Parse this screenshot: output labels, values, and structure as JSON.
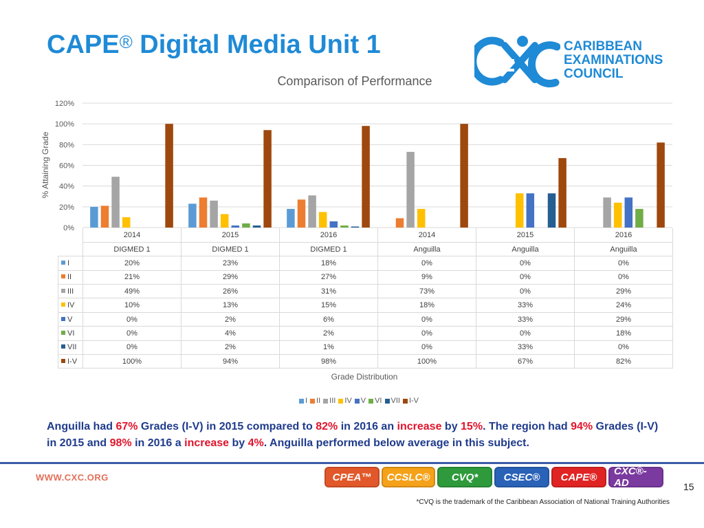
{
  "slide": {
    "title": "CAPE",
    "title_mark": "®",
    "title_rest": " Digital Media Unit 1"
  },
  "logo": {
    "name_lines": [
      "CARIBBEAN",
      "EXAMINATIONS",
      "COUNCIL"
    ],
    "mark_text": "CXC",
    "color": "#1f8ad6"
  },
  "chart_data": {
    "type": "bar",
    "title": "Comparison of Performance",
    "ylabel": "% Attaining Grade",
    "xlabel": "Grade Distribution",
    "ylim": [
      0,
      120
    ],
    "yticks": [
      "0%",
      "20%",
      "40%",
      "60%",
      "80%",
      "100%",
      "120%"
    ],
    "grid": true,
    "legend_position": "bottom",
    "categories": [
      {
        "year": "2014",
        "group": "DIGMED 1"
      },
      {
        "year": "2015",
        "group": "DIGMED 1"
      },
      {
        "year": "2016",
        "group": "DIGMED 1"
      },
      {
        "year": "2014",
        "group": "Anguilla"
      },
      {
        "year": "2015",
        "group": "Anguilla"
      },
      {
        "year": "2016",
        "group": "Anguilla"
      }
    ],
    "series": [
      {
        "name": "I",
        "color": "#5b9bd5",
        "values": [
          20,
          23,
          18,
          0,
          0,
          0
        ],
        "labels": [
          "20%",
          "23%",
          "18%",
          "0%",
          "0%",
          "0%"
        ]
      },
      {
        "name": "II",
        "color": "#ed7d31",
        "values": [
          21,
          29,
          27,
          9,
          0,
          0
        ],
        "labels": [
          "21%",
          "29%",
          "27%",
          "9%",
          "0%",
          "0%"
        ]
      },
      {
        "name": "III",
        "color": "#a5a5a5",
        "values": [
          49,
          26,
          31,
          73,
          0,
          29
        ],
        "labels": [
          "49%",
          "26%",
          "31%",
          "73%",
          "0%",
          "29%"
        ]
      },
      {
        "name": "IV",
        "color": "#ffc000",
        "values": [
          10,
          13,
          15,
          18,
          33,
          24
        ],
        "labels": [
          "10%",
          "13%",
          "15%",
          "18%",
          "33%",
          "24%"
        ]
      },
      {
        "name": "V",
        "color": "#4472c4",
        "values": [
          0,
          2,
          6,
          0,
          33,
          29
        ],
        "labels": [
          "0%",
          "2%",
          "6%",
          "0%",
          "33%",
          "29%"
        ]
      },
      {
        "name": "VI",
        "color": "#70ad47",
        "values": [
          0,
          4,
          2,
          0,
          0,
          18
        ],
        "labels": [
          "0%",
          "4%",
          "2%",
          "0%",
          "0%",
          "18%"
        ]
      },
      {
        "name": "VII",
        "color": "#255e91",
        "values": [
          0,
          2,
          1,
          0,
          33,
          0
        ],
        "labels": [
          "0%",
          "2%",
          "1%",
          "0%",
          "33%",
          "0%"
        ]
      },
      {
        "name": "I-V",
        "color": "#9e480e",
        "values": [
          100,
          94,
          98,
          100,
          67,
          82
        ],
        "labels": [
          "100%",
          "94%",
          "98%",
          "100%",
          "67%",
          "82%"
        ]
      }
    ]
  },
  "caption": {
    "p1": "Anguilla had ",
    "v1": "67%",
    "p2": " Grades (I-V) in 2015 compared to ",
    "v2": "82%",
    "p3": " in 2016 an ",
    "v3": "increase",
    "p4": " by ",
    "v4": "15%",
    "p5": ". The region had ",
    "v5": "94%",
    "p6": " Grades (I-V) in 2015 and ",
    "v6": "98%",
    "p7": " in 2016 a ",
    "v7": "increase",
    "p8": " by ",
    "v8": "4%",
    "p9": ". Anguilla performed below average in this subject."
  },
  "footer": {
    "url": "WWW.CXC.ORG",
    "page_number": "15",
    "footnote": "*CVQ is the trademark of the Caribbean Association of National Training Authorities",
    "brands": [
      {
        "label": "CPEA™",
        "color": "#e2582a"
      },
      {
        "label": "CCSLC®",
        "color": "#f5a21a"
      },
      {
        "label": "CVQ*",
        "color": "#2e9a3c"
      },
      {
        "label": "CSEC®",
        "color": "#2a62b8"
      },
      {
        "label": "CAPE®",
        "color": "#e02424"
      },
      {
        "label": "CXC®-AD",
        "color": "#7b3aa0"
      }
    ]
  }
}
